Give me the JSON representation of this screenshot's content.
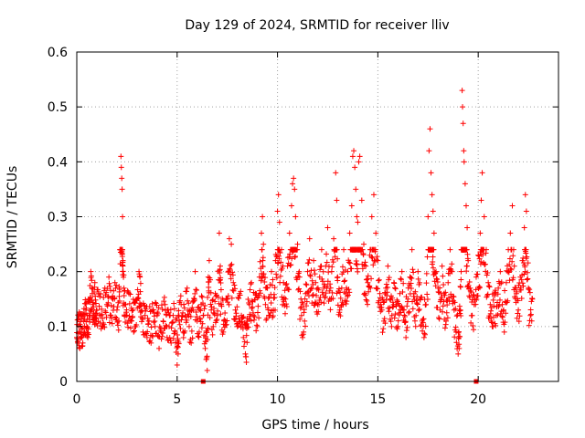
{
  "chart_data": {
    "type": "scatter",
    "title": "Day 129 of 2024, SRMTID for receiver lliv",
    "xlabel": "GPS time / hours",
    "ylabel": "SRMTID / TECUs",
    "xlim": [
      0,
      24
    ],
    "ylim": [
      0,
      0.6
    ],
    "grid": true,
    "x_ticks": [
      {
        "value": 0,
        "label": "0"
      },
      {
        "value": 5,
        "label": "5"
      },
      {
        "value": 10,
        "label": "10"
      },
      {
        "value": 15,
        "label": "15"
      },
      {
        "value": 20,
        "label": "20"
      }
    ],
    "y_ticks": [
      {
        "value": 0,
        "label": "0"
      },
      {
        "value": 0.1,
        "label": "0.1"
      },
      {
        "value": 0.2,
        "label": "0.2"
      },
      {
        "value": 0.3,
        "label": "0.3"
      },
      {
        "value": 0.4,
        "label": "0.4"
      },
      {
        "value": 0.5,
        "label": "0.5"
      },
      {
        "value": 0.6,
        "label": "0.6"
      }
    ],
    "marker": "+",
    "color": "#ff0000",
    "series": [
      {
        "name": "SRMTID",
        "points": [
          [
            0.0,
            0.08
          ],
          [
            0.05,
            0.07
          ],
          [
            0.1,
            0.09
          ],
          [
            0.15,
            0.06
          ],
          [
            0.2,
            0.1
          ],
          [
            0.25,
            0.08
          ],
          [
            0.3,
            0.07
          ],
          [
            0.35,
            0.11
          ],
          [
            0.4,
            0.09
          ],
          [
            0.45,
            0.13
          ],
          [
            0.5,
            0.1
          ],
          [
            0.55,
            0.08
          ],
          [
            0.6,
            0.15
          ],
          [
            0.65,
            0.12
          ],
          [
            0.7,
            0.2
          ],
          [
            0.75,
            0.17
          ],
          [
            0.8,
            0.14
          ],
          [
            0.85,
            0.12
          ],
          [
            0.9,
            0.18
          ],
          [
            0.95,
            0.11
          ],
          [
            1.0,
            0.13
          ],
          [
            1.1,
            0.16
          ],
          [
            1.2,
            0.12
          ],
          [
            1.3,
            0.1
          ],
          [
            1.4,
            0.17
          ],
          [
            1.5,
            0.14
          ],
          [
            1.6,
            0.19
          ],
          [
            1.7,
            0.12
          ],
          [
            1.8,
            0.15
          ],
          [
            1.9,
            0.18
          ],
          [
            2.0,
            0.13
          ],
          [
            2.1,
            0.11
          ],
          [
            2.15,
            0.24
          ],
          [
            2.2,
            0.41
          ],
          [
            2.22,
            0.39
          ],
          [
            2.24,
            0.37
          ],
          [
            2.26,
            0.35
          ],
          [
            2.28,
            0.3
          ],
          [
            2.3,
            0.22
          ],
          [
            2.35,
            0.17
          ],
          [
            2.4,
            0.14
          ],
          [
            2.5,
            0.12
          ],
          [
            2.6,
            0.16
          ],
          [
            2.7,
            0.11
          ],
          [
            2.8,
            0.13
          ],
          [
            2.9,
            0.1
          ],
          [
            3.0,
            0.15
          ],
          [
            3.1,
            0.2
          ],
          [
            3.15,
            0.19
          ],
          [
            3.2,
            0.14
          ],
          [
            3.3,
            0.09
          ],
          [
            3.4,
            0.12
          ],
          [
            3.5,
            0.08
          ],
          [
            3.6,
            0.11
          ],
          [
            3.7,
            0.07
          ],
          [
            3.8,
            0.13
          ],
          [
            3.9,
            0.1
          ],
          [
            4.0,
            0.12
          ],
          [
            4.1,
            0.06
          ],
          [
            4.2,
            0.09
          ],
          [
            4.3,
            0.11
          ],
          [
            4.4,
            0.14
          ],
          [
            4.5,
            0.08
          ],
          [
            4.6,
            0.1
          ],
          [
            4.7,
            0.07
          ],
          [
            4.8,
            0.12
          ],
          [
            4.9,
            0.09
          ],
          [
            5.0,
            0.03
          ],
          [
            5.05,
            0.05
          ],
          [
            5.1,
            0.11
          ],
          [
            5.2,
            0.14
          ],
          [
            5.3,
            0.09
          ],
          [
            5.4,
            0.12
          ],
          [
            5.5,
            0.17
          ],
          [
            5.6,
            0.1
          ],
          [
            5.7,
            0.07
          ],
          [
            5.8,
            0.13
          ],
          [
            5.9,
            0.2
          ],
          [
            6.0,
            0.11
          ],
          [
            6.1,
            0.09
          ],
          [
            6.2,
            0.14
          ],
          [
            6.3,
            0.12
          ],
          [
            6.4,
            0.06
          ],
          [
            6.45,
            0.04
          ],
          [
            6.5,
            0.02
          ],
          [
            6.55,
            0.19
          ],
          [
            6.6,
            0.22
          ],
          [
            6.7,
            0.13
          ],
          [
            6.8,
            0.1
          ],
          [
            6.9,
            0.16
          ],
          [
            7.0,
            0.12
          ],
          [
            7.1,
            0.27
          ],
          [
            7.15,
            0.21
          ],
          [
            7.2,
            0.14
          ],
          [
            7.3,
            0.09
          ],
          [
            7.4,
            0.11
          ],
          [
            7.5,
            0.15
          ],
          [
            7.6,
            0.26
          ],
          [
            7.7,
            0.25
          ],
          [
            7.8,
            0.18
          ],
          [
            7.9,
            0.13
          ],
          [
            8.0,
            0.1
          ],
          [
            8.1,
            0.16
          ],
          [
            8.2,
            0.12
          ],
          [
            8.3,
            0.08
          ],
          [
            8.4,
            0.05
          ],
          [
            8.45,
            0.035
          ],
          [
            8.5,
            0.11
          ],
          [
            8.6,
            0.14
          ],
          [
            8.7,
            0.18
          ],
          [
            8.8,
            0.12
          ],
          [
            8.9,
            0.16
          ],
          [
            9.0,
            0.1
          ],
          [
            9.1,
            0.19
          ],
          [
            9.2,
            0.27
          ],
          [
            9.25,
            0.3
          ],
          [
            9.3,
            0.25
          ],
          [
            9.4,
            0.14
          ],
          [
            9.5,
            0.17
          ],
          [
            9.6,
            0.12
          ],
          [
            9.7,
            0.2
          ],
          [
            9.8,
            0.13
          ],
          [
            9.9,
            0.22
          ],
          [
            10.0,
            0.31
          ],
          [
            10.05,
            0.34
          ],
          [
            10.1,
            0.29
          ],
          [
            10.2,
            0.24
          ],
          [
            10.3,
            0.18
          ],
          [
            10.4,
            0.15
          ],
          [
            10.5,
            0.21
          ],
          [
            10.6,
            0.27
          ],
          [
            10.7,
            0.32
          ],
          [
            10.75,
            0.36
          ],
          [
            10.8,
            0.37
          ],
          [
            10.85,
            0.35
          ],
          [
            10.9,
            0.3
          ],
          [
            11.0,
            0.25
          ],
          [
            11.1,
            0.19
          ],
          [
            11.2,
            0.12
          ],
          [
            11.3,
            0.09
          ],
          [
            11.4,
            0.16
          ],
          [
            11.5,
            0.2
          ],
          [
            11.6,
            0.26
          ],
          [
            11.7,
            0.17
          ],
          [
            11.8,
            0.22
          ],
          [
            11.9,
            0.18
          ],
          [
            12.0,
            0.14
          ],
          [
            12.1,
            0.19
          ],
          [
            12.2,
            0.24
          ],
          [
            12.3,
            0.17
          ],
          [
            12.4,
            0.21
          ],
          [
            12.5,
            0.28
          ],
          [
            12.6,
            0.15
          ],
          [
            12.7,
            0.2
          ],
          [
            12.8,
            0.26
          ],
          [
            12.9,
            0.38
          ],
          [
            12.95,
            0.33
          ],
          [
            13.0,
            0.19
          ],
          [
            13.1,
            0.13
          ],
          [
            13.2,
            0.17
          ],
          [
            13.3,
            0.24
          ],
          [
            13.4,
            0.16
          ],
          [
            13.5,
            0.2
          ],
          [
            13.6,
            0.27
          ],
          [
            13.7,
            0.32
          ],
          [
            13.75,
            0.41
          ],
          [
            13.8,
            0.42
          ],
          [
            13.85,
            0.39
          ],
          [
            13.9,
            0.35
          ],
          [
            13.95,
            0.3
          ],
          [
            14.0,
            0.29
          ],
          [
            14.05,
            0.4
          ],
          [
            14.1,
            0.41
          ],
          [
            14.2,
            0.33
          ],
          [
            14.3,
            0.25
          ],
          [
            14.4,
            0.21
          ],
          [
            14.5,
            0.18
          ],
          [
            14.6,
            0.23
          ],
          [
            14.7,
            0.3
          ],
          [
            14.8,
            0.34
          ],
          [
            14.9,
            0.27
          ],
          [
            15.0,
            0.22
          ],
          [
            15.1,
            0.16
          ],
          [
            15.2,
            0.13
          ],
          [
            15.3,
            0.11
          ],
          [
            15.4,
            0.17
          ],
          [
            15.5,
            0.21
          ],
          [
            15.6,
            0.15
          ],
          [
            15.7,
            0.12
          ],
          [
            15.8,
            0.18
          ],
          [
            15.9,
            0.14
          ],
          [
            16.0,
            0.1
          ],
          [
            16.1,
            0.16
          ],
          [
            16.2,
            0.2
          ],
          [
            16.3,
            0.13
          ],
          [
            16.4,
            0.08
          ],
          [
            16.5,
            0.15
          ],
          [
            16.6,
            0.19
          ],
          [
            16.7,
            0.24
          ],
          [
            16.8,
            0.16
          ],
          [
            16.9,
            0.12
          ],
          [
            17.0,
            0.2
          ],
          [
            17.1,
            0.15
          ],
          [
            17.2,
            0.11
          ],
          [
            17.3,
            0.08
          ],
          [
            17.4,
            0.14
          ],
          [
            17.5,
            0.3
          ],
          [
            17.55,
            0.42
          ],
          [
            17.6,
            0.46
          ],
          [
            17.65,
            0.38
          ],
          [
            17.7,
            0.34
          ],
          [
            17.75,
            0.31
          ],
          [
            17.8,
            0.27
          ],
          [
            17.9,
            0.2
          ],
          [
            18.0,
            0.17
          ],
          [
            18.1,
            0.13
          ],
          [
            18.2,
            0.21
          ],
          [
            18.3,
            0.16
          ],
          [
            18.4,
            0.11
          ],
          [
            18.5,
            0.18
          ],
          [
            18.6,
            0.24
          ],
          [
            18.7,
            0.2
          ],
          [
            18.8,
            0.13
          ],
          [
            18.9,
            0.09
          ],
          [
            19.0,
            0.05
          ],
          [
            19.05,
            0.06
          ],
          [
            19.1,
            0.13
          ],
          [
            19.15,
            0.2
          ],
          [
            19.2,
            0.53
          ],
          [
            19.22,
            0.5
          ],
          [
            19.25,
            0.47
          ],
          [
            19.28,
            0.42
          ],
          [
            19.3,
            0.4
          ],
          [
            19.35,
            0.36
          ],
          [
            19.4,
            0.32
          ],
          [
            19.45,
            0.28
          ],
          [
            19.5,
            0.22
          ],
          [
            19.6,
            0.17
          ],
          [
            19.7,
            0.12
          ],
          [
            19.8,
            0.14
          ],
          [
            19.9,
            0.19
          ],
          [
            20.0,
            0.23
          ],
          [
            20.1,
            0.27
          ],
          [
            20.15,
            0.33
          ],
          [
            20.2,
            0.38
          ],
          [
            20.3,
            0.3
          ],
          [
            20.4,
            0.24
          ],
          [
            20.5,
            0.18
          ],
          [
            20.6,
            0.14
          ],
          [
            20.7,
            0.1
          ],
          [
            20.8,
            0.16
          ],
          [
            20.9,
            0.12
          ],
          [
            21.0,
            0.17
          ],
          [
            21.1,
            0.2
          ],
          [
            21.2,
            0.14
          ],
          [
            21.3,
            0.09
          ],
          [
            21.4,
            0.18
          ],
          [
            21.5,
            0.24
          ],
          [
            21.6,
            0.27
          ],
          [
            21.7,
            0.32
          ],
          [
            21.8,
            0.21
          ],
          [
            21.9,
            0.16
          ],
          [
            22.0,
            0.13
          ],
          [
            22.1,
            0.19
          ],
          [
            22.2,
            0.22
          ],
          [
            22.3,
            0.28
          ],
          [
            22.35,
            0.34
          ],
          [
            22.4,
            0.31
          ],
          [
            22.5,
            0.17
          ],
          [
            22.6,
            0.12
          ],
          [
            22.7,
            0.15
          ]
        ]
      }
    ],
    "gaps_marked": [
      6.3,
      19.9
    ]
  }
}
